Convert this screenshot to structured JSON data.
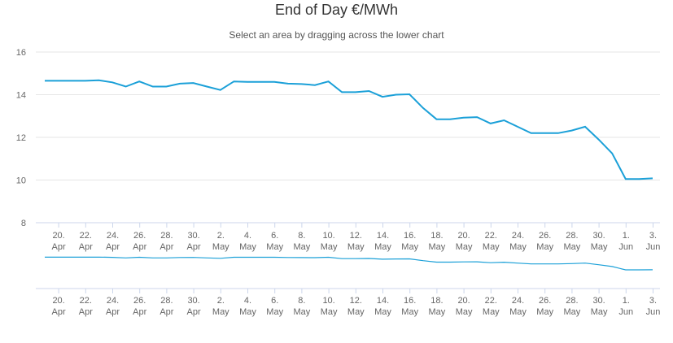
{
  "chart_data": {
    "type": "line",
    "title": "End of Day €/MWh",
    "subtitle": "Select an area by dragging across the lower chart",
    "color": "#1ba0d8",
    "ylim": [
      8,
      16
    ],
    "yticks": [
      "16",
      "14",
      "12",
      "10",
      "8"
    ],
    "xtick_labels": [
      {
        "day": "20.",
        "month": "Apr"
      },
      {
        "day": "22.",
        "month": "Apr"
      },
      {
        "day": "24.",
        "month": "Apr"
      },
      {
        "day": "26.",
        "month": "Apr"
      },
      {
        "day": "28.",
        "month": "Apr"
      },
      {
        "day": "30.",
        "month": "Apr"
      },
      {
        "day": "2.",
        "month": "May"
      },
      {
        "day": "4.",
        "month": "May"
      },
      {
        "day": "6.",
        "month": "May"
      },
      {
        "day": "8.",
        "month": "May"
      },
      {
        "day": "10.",
        "month": "May"
      },
      {
        "day": "12.",
        "month": "May"
      },
      {
        "day": "14.",
        "month": "May"
      },
      {
        "day": "16.",
        "month": "May"
      },
      {
        "day": "18.",
        "month": "May"
      },
      {
        "day": "20.",
        "month": "May"
      },
      {
        "day": "22.",
        "month": "May"
      },
      {
        "day": "24.",
        "month": "May"
      },
      {
        "day": "26.",
        "month": "May"
      },
      {
        "day": "28.",
        "month": "May"
      },
      {
        "day": "30.",
        "month": "May"
      },
      {
        "day": "1.",
        "month": "Jun"
      },
      {
        "day": "3.",
        "month": "Jun"
      }
    ],
    "x": [
      "2018-04-19",
      "2018-04-20",
      "2018-04-21",
      "2018-04-22",
      "2018-04-23",
      "2018-04-24",
      "2018-04-25",
      "2018-04-26",
      "2018-04-27",
      "2018-04-28",
      "2018-04-29",
      "2018-04-30",
      "2018-05-01",
      "2018-05-02",
      "2018-05-03",
      "2018-05-04",
      "2018-05-05",
      "2018-05-06",
      "2018-05-07",
      "2018-05-08",
      "2018-05-09",
      "2018-05-10",
      "2018-05-11",
      "2018-05-12",
      "2018-05-13",
      "2018-05-14",
      "2018-05-15",
      "2018-05-16",
      "2018-05-17",
      "2018-05-18",
      "2018-05-19",
      "2018-05-20",
      "2018-05-21",
      "2018-05-22",
      "2018-05-23",
      "2018-05-24",
      "2018-05-25",
      "2018-05-26",
      "2018-05-27",
      "2018-05-28",
      "2018-05-29",
      "2018-05-30",
      "2018-05-31",
      "2018-06-01",
      "2018-06-02",
      "2018-06-03"
    ],
    "values": [
      14.65,
      14.65,
      14.65,
      14.65,
      14.68,
      14.58,
      14.38,
      14.62,
      14.38,
      14.38,
      14.52,
      14.55,
      14.38,
      14.22,
      14.62,
      14.6,
      14.6,
      14.6,
      14.52,
      14.5,
      14.45,
      14.62,
      14.12,
      14.12,
      14.17,
      13.9,
      14.0,
      14.02,
      13.38,
      12.85,
      12.85,
      12.92,
      12.95,
      12.65,
      12.8,
      12.5,
      12.2,
      12.2,
      12.2,
      12.32,
      12.5,
      11.9,
      11.25,
      10.05,
      10.05,
      10.08
    ]
  }
}
